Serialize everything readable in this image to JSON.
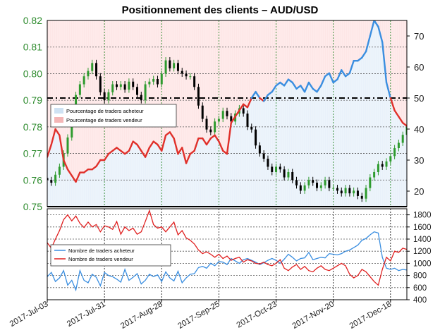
{
  "chart_data": [
    {
      "type": "line",
      "panel": "upper",
      "title": "Positionnement des clients – AUD/USD",
      "left_axis": {
        "ylim": [
          0.75,
          0.82
        ],
        "ticks": [
          "0.75",
          "0.76",
          "0.77",
          "0.78",
          "0.79",
          "0.80",
          "0.81",
          "0.82"
        ],
        "color": "#2e8b2e"
      },
      "right_axis": {
        "ylim": [
          15,
          75
        ],
        "ticks": [
          "20",
          "30",
          "40",
          "50",
          "60",
          "70"
        ]
      },
      "x_ticks": [
        "2017-Jul-03",
        "2017-Jul-31",
        "2017-Aug-28",
        "2017-Sep-25",
        "2017-Oct-23",
        "2017-Nov-20",
        "2017-Dec-18"
      ],
      "x_range_days": [
        0,
        176
      ],
      "reference_line": 50,
      "grid": true,
      "legend": {
        "placement": "center-left",
        "entries": [
          {
            "label": "Pourcentage de traders acheteur",
            "color": "#cfe2f3"
          },
          {
            "label": "Pourcentage de traders vendeur",
            "color": "#f4b6b6"
          }
        ]
      },
      "series": [
        {
          "role": "pct_long",
          "x_days": [
            0,
            2,
            4,
            6,
            8,
            10,
            12,
            14,
            16,
            18,
            20,
            22,
            24,
            26,
            28,
            30,
            32,
            34,
            36,
            38,
            40,
            42,
            44,
            46,
            48,
            50,
            52,
            54,
            56,
            58,
            60,
            62,
            64,
            66,
            68,
            70,
            72,
            74,
            76,
            78,
            80,
            82,
            84,
            86,
            88,
            90,
            92,
            94,
            96,
            98,
            100,
            102,
            104,
            106,
            108,
            110,
            112,
            114,
            116,
            118,
            120,
            122,
            124,
            126,
            128,
            130,
            132,
            134,
            136,
            138,
            140,
            142,
            144,
            146,
            148,
            150,
            152,
            154,
            156,
            158,
            160,
            162,
            164,
            166,
            168,
            170,
            172,
            174,
            176
          ],
          "values": [
            31,
            35,
            40,
            38,
            30,
            27,
            25,
            23,
            26,
            26,
            27,
            27,
            28,
            30,
            30,
            32,
            33,
            34,
            33,
            32,
            33,
            36,
            35,
            33,
            31,
            34,
            36,
            35,
            33,
            38,
            39,
            37,
            32,
            34,
            29,
            32,
            33,
            37,
            37,
            35,
            37,
            38,
            36,
            33,
            32,
            42,
            44,
            46,
            48,
            47,
            50,
            52,
            50,
            49,
            51,
            52,
            54,
            55,
            54,
            56,
            55,
            53,
            54,
            52,
            55,
            53,
            52,
            54,
            57,
            58,
            55,
            56,
            59,
            57,
            58,
            62,
            62,
            63,
            65,
            70,
            75,
            73,
            68,
            55,
            50,
            46,
            44,
            42,
            41
          ]
        }
      ],
      "price_candles": {
        "description": "daily AUD/USD candles",
        "x_days": [
          0,
          2,
          4,
          6,
          8,
          10,
          12,
          14,
          16,
          18,
          20,
          22,
          24,
          26,
          28,
          30,
          32,
          34,
          36,
          38,
          40,
          42,
          44,
          46,
          48,
          50,
          52,
          54,
          56,
          58,
          60,
          62,
          64,
          66,
          68,
          70,
          72,
          74,
          76,
          78,
          80,
          82,
          84,
          86,
          88,
          90,
          92,
          94,
          96,
          98,
          100,
          102,
          104,
          106,
          108,
          110,
          112,
          114,
          116,
          118,
          120,
          122,
          124,
          126,
          128,
          130,
          132,
          134,
          136,
          138,
          140,
          142,
          144,
          146,
          148,
          150,
          152,
          154,
          156,
          158,
          160,
          162,
          164,
          166,
          168,
          170,
          172,
          174,
          176
        ],
        "close": [
          0.76,
          0.759,
          0.762,
          0.765,
          0.77,
          0.776,
          0.785,
          0.792,
          0.796,
          0.799,
          0.801,
          0.804,
          0.799,
          0.793,
          0.79,
          0.793,
          0.796,
          0.795,
          0.796,
          0.794,
          0.797,
          0.795,
          0.792,
          0.79,
          0.796,
          0.797,
          0.798,
          0.796,
          0.8,
          0.805,
          0.802,
          0.804,
          0.801,
          0.8,
          0.799,
          0.799,
          0.795,
          0.788,
          0.783,
          0.779,
          0.778,
          0.782,
          0.783,
          0.786,
          0.784,
          0.782,
          0.785,
          0.787,
          0.785,
          0.78,
          0.779,
          0.773,
          0.77,
          0.768,
          0.765,
          0.763,
          0.765,
          0.764,
          0.761,
          0.763,
          0.76,
          0.758,
          0.756,
          0.758,
          0.76,
          0.759,
          0.757,
          0.758,
          0.76,
          0.757,
          0.757,
          0.756,
          0.755,
          0.757,
          0.755,
          0.756,
          0.754,
          0.753,
          0.757,
          0.761,
          0.763,
          0.766,
          0.765,
          0.767,
          0.769,
          0.772,
          0.774,
          0.777,
          0.78
        ]
      }
    },
    {
      "type": "line",
      "panel": "lower",
      "right_axis": {
        "ylim": [
          400,
          1900
        ],
        "ticks": [
          "400",
          "600",
          "800",
          "1000",
          "1200",
          "1400",
          "1600",
          "1800"
        ]
      },
      "x_range_days": [
        0,
        176
      ],
      "grid": true,
      "legend": {
        "placement": "center-left",
        "entries": [
          {
            "label": "Nombre de traders acheteur",
            "color": "#3a8ee0"
          },
          {
            "label": "Nombre de traders vendeur",
            "color": "#e02020"
          }
        ]
      },
      "series": [
        {
          "name": "Nombre de traders acheteur",
          "color": "#3a8ee0",
          "x_days": [
            0,
            2,
            4,
            6,
            8,
            10,
            12,
            14,
            16,
            18,
            20,
            22,
            24,
            26,
            28,
            30,
            32,
            34,
            36,
            38,
            40,
            42,
            44,
            46,
            48,
            50,
            52,
            54,
            56,
            58,
            60,
            62,
            64,
            66,
            68,
            70,
            72,
            74,
            76,
            78,
            80,
            82,
            84,
            86,
            88,
            90,
            92,
            94,
            96,
            98,
            100,
            102,
            104,
            106,
            108,
            110,
            112,
            114,
            116,
            118,
            120,
            122,
            124,
            126,
            128,
            130,
            132,
            134,
            136,
            138,
            140,
            142,
            144,
            146,
            148,
            150,
            152,
            154,
            156,
            158,
            160,
            162,
            164,
            166,
            168,
            170,
            172,
            174,
            176
          ],
          "values": [
            780,
            850,
            700,
            760,
            880,
            640,
            720,
            560,
            880,
            720,
            680,
            820,
            770,
            630,
            850,
            800,
            780,
            740,
            690,
            900,
            720,
            770,
            830,
            660,
            720,
            820,
            780,
            810,
            700,
            860,
            760,
            710,
            870,
            680,
            760,
            820,
            830,
            930,
            950,
            920,
            1000,
            960,
            1030,
            1020,
            980,
            1080,
            1040,
            1000,
            1060,
            1080,
            1050,
            1020,
            980,
            1010,
            1050,
            1080,
            1050,
            1000,
            1070,
            1150,
            1100,
            1040,
            1080,
            1090,
            1180,
            1060,
            1080,
            1100,
            1090,
            1160,
            1150,
            1140,
            1160,
            1200,
            1220,
            1260,
            1300,
            1380,
            1410,
            1470,
            1520,
            1500,
            1100,
            920,
            900,
            920,
            880,
            900,
            890
          ]
        },
        {
          "name": "Nombre de traders vendeur",
          "color": "#e02020",
          "x_days": [
            0,
            2,
            4,
            6,
            8,
            10,
            12,
            14,
            16,
            18,
            20,
            22,
            24,
            26,
            28,
            30,
            32,
            34,
            36,
            38,
            40,
            42,
            44,
            46,
            48,
            50,
            52,
            54,
            56,
            58,
            60,
            62,
            64,
            66,
            68,
            70,
            72,
            74,
            76,
            78,
            80,
            82,
            84,
            86,
            88,
            90,
            92,
            94,
            96,
            98,
            100,
            102,
            104,
            106,
            108,
            110,
            112,
            114,
            116,
            118,
            120,
            122,
            124,
            126,
            128,
            130,
            132,
            134,
            136,
            138,
            140,
            142,
            144,
            146,
            148,
            150,
            152,
            154,
            156,
            158,
            160,
            162,
            164,
            166,
            168,
            170,
            172,
            174,
            176
          ],
          "values": [
            1340,
            1250,
            1400,
            1540,
            1720,
            1800,
            1700,
            1780,
            1660,
            1590,
            1680,
            1600,
            1640,
            1520,
            1620,
            1600,
            1560,
            1690,
            1480,
            1600,
            1540,
            1580,
            1480,
            1520,
            1690,
            1870,
            1640,
            1580,
            1600,
            1520,
            1600,
            1680,
            1470,
            1540,
            1420,
            1380,
            1320,
            1220,
            1160,
            1190,
            1150,
            1100,
            1150,
            1080,
            1120,
            1050,
            1080,
            1100,
            1020,
            1060,
            1040,
            1000,
            990,
            1020,
            980,
            960,
            1000,
            1060,
            920,
            880,
            940,
            980,
            900,
            950,
            880,
            860,
            920,
            960,
            900,
            880,
            920,
            960,
            1000,
            960,
            820,
            760,
            800,
            900,
            860,
            780,
            700,
            640,
            900,
            1100,
            1040,
            1200,
            1180,
            1250,
            1230
          ]
        }
      ]
    }
  ]
}
